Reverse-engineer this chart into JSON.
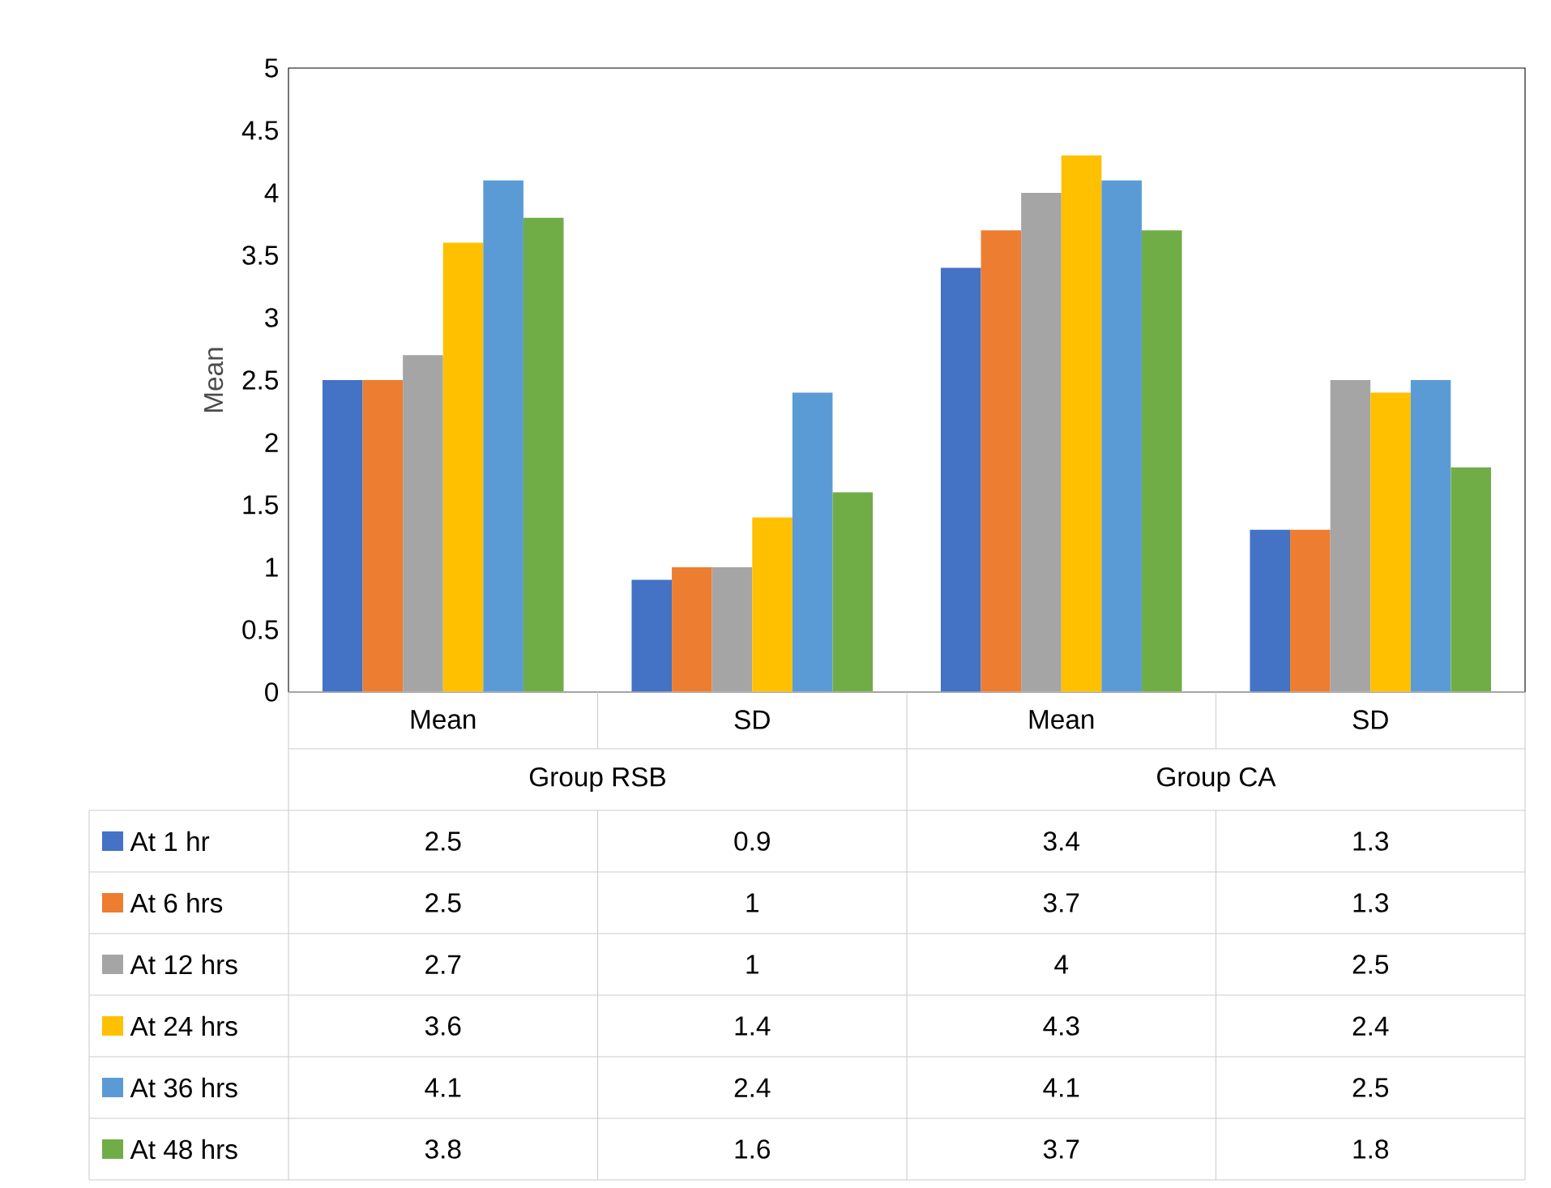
{
  "chart_data": {
    "type": "bar",
    "ylabel": "Mean",
    "categories": [
      "Mean",
      "SD",
      "Mean",
      "SD"
    ],
    "annotations": [
      "Group RSB",
      "Group CA"
    ],
    "series": [
      {
        "name": "At 1 hr",
        "color": "#4472c4",
        "values": [
          2.5,
          0.9,
          3.4,
          1.3
        ]
      },
      {
        "name": "At 6 hrs",
        "color": "#ed7d31",
        "values": [
          2.5,
          1,
          3.7,
          1.3
        ]
      },
      {
        "name": "At 12 hrs",
        "color": "#a5a5a5",
        "values": [
          2.7,
          1,
          4,
          2.5
        ]
      },
      {
        "name": "At 24 hrs",
        "color": "#ffc000",
        "values": [
          3.6,
          1.4,
          4.3,
          2.4
        ]
      },
      {
        "name": "At 36 hrs",
        "color": "#5b9bd5",
        "values": [
          4.1,
          2.4,
          4.1,
          2.5
        ]
      },
      {
        "name": "At 48 hrs",
        "color": "#70ad47",
        "values": [
          3.8,
          1.6,
          3.7,
          1.8
        ]
      }
    ],
    "ylim": [
      0,
      5
    ],
    "yticks": [
      0,
      0.5,
      1,
      1.5,
      2,
      2.5,
      3,
      3.5,
      4,
      4.5,
      5
    ],
    "data_labels": true,
    "legend": "bottom",
    "grid": false
  }
}
